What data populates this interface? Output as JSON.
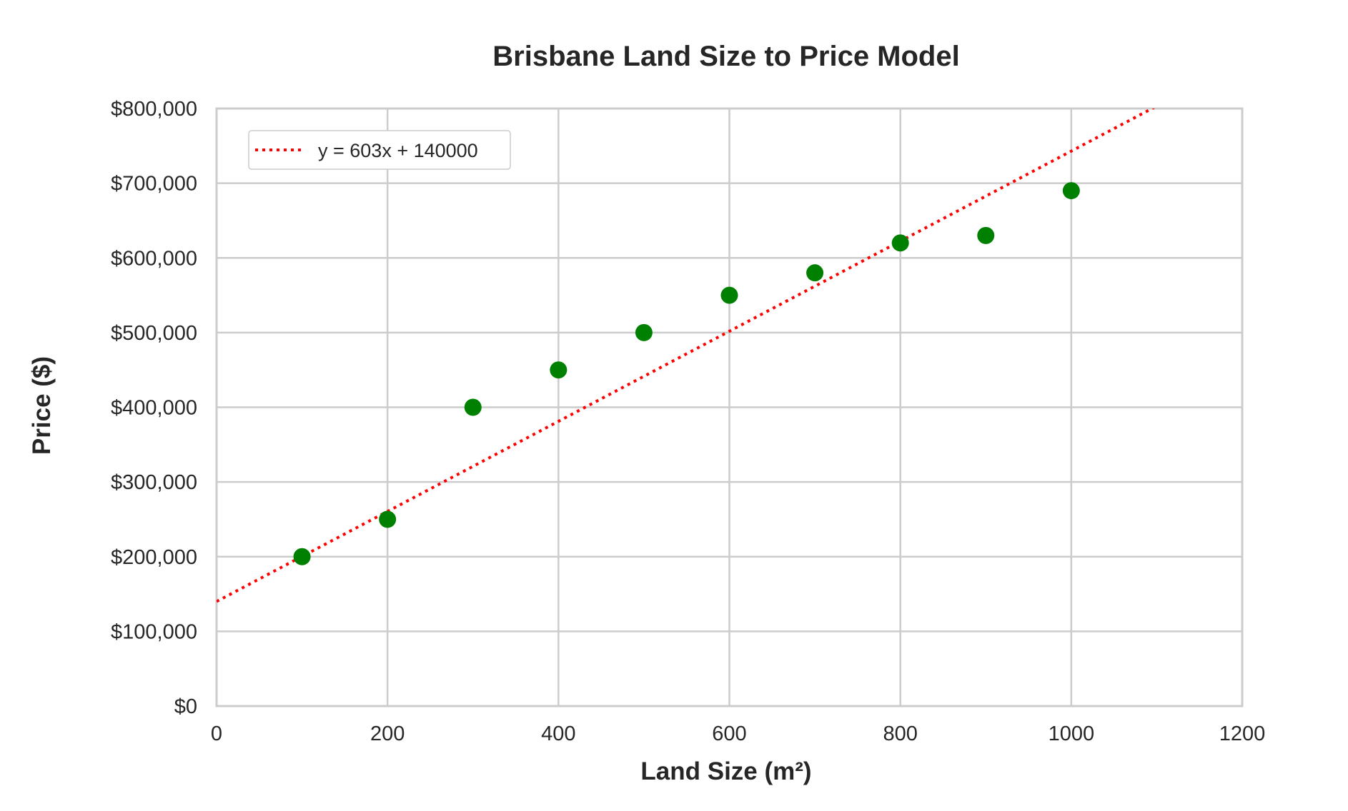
{
  "chart_data": {
    "type": "scatter",
    "title": "Brisbane Land Size to Price Model",
    "xlabel": "Land Size (m²)",
    "ylabel": "Price ($)",
    "xlim": [
      0,
      1200
    ],
    "ylim": [
      0,
      800000
    ],
    "x_ticks": [
      0,
      200,
      400,
      600,
      800,
      1000,
      1200
    ],
    "x_tick_labels": [
      "0",
      "200",
      "400",
      "600",
      "800",
      "1000",
      "1200"
    ],
    "y_ticks": [
      0,
      100000,
      200000,
      300000,
      400000,
      500000,
      600000,
      700000,
      800000
    ],
    "y_tick_labels": [
      "$0",
      "$100,000",
      "$200,000",
      "$300,000",
      "$400,000",
      "$500,000",
      "$600,000",
      "$700,000",
      "$800,000"
    ],
    "grid": true,
    "legend_position": "top-left",
    "series": [
      {
        "kind": "scatter",
        "color": "#008000",
        "x": [
          100,
          200,
          300,
          400,
          500,
          600,
          700,
          800,
          900,
          1000
        ],
        "y": [
          200000,
          250000,
          400000,
          450000,
          500000,
          550000,
          580000,
          620000,
          630000,
          690000
        ]
      },
      {
        "kind": "line",
        "name": "y = 603x + 140000",
        "style": "dotted",
        "color": "#ff0000",
        "slope": 603,
        "intercept": 140000
      }
    ]
  }
}
